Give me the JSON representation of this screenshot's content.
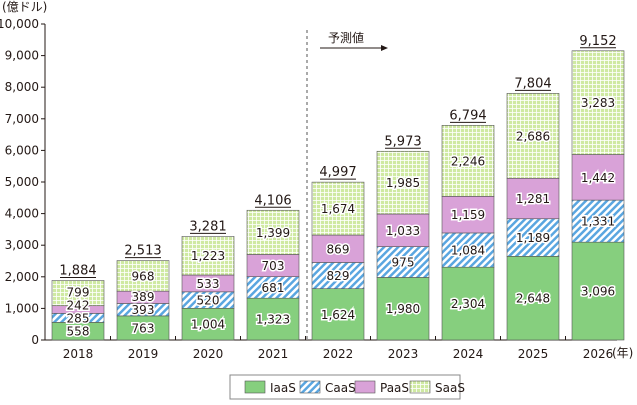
{
  "chart_data": {
    "type": "bar",
    "stacked": true,
    "ylabel": "(億ドル)",
    "xlabel": "(年)",
    "ylim": [
      0,
      10000
    ],
    "yticks": [
      "0",
      "1,000",
      "2,000",
      "3,000",
      "4,000",
      "5,000",
      "6,000",
      "7,000",
      "8,000",
      "9,000",
      "10,000"
    ],
    "categories": [
      "2018",
      "2019",
      "2020",
      "2021",
      "2022",
      "2023",
      "2024",
      "2025",
      "2026"
    ],
    "series": [
      {
        "name": "IaaS",
        "color": "#86cf7e",
        "values": [
          558,
          763,
          1004,
          1323,
          1624,
          1980,
          2304,
          2648,
          3096
        ],
        "labels": [
          "558",
          "763",
          "1,004",
          "1,323",
          "1,624",
          "1,980",
          "2,304",
          "2,648",
          "3,096"
        ]
      },
      {
        "name": "CaaS",
        "color": "#5aa6e0",
        "values": [
          285,
          393,
          520,
          681,
          829,
          975,
          1084,
          1189,
          1331
        ],
        "labels": [
          "285",
          "393",
          "520",
          "681",
          "829",
          "975",
          "1,084",
          "1,189",
          "1,331"
        ]
      },
      {
        "name": "PaaS",
        "color": "#d9a2d8",
        "values": [
          242,
          389,
          533,
          703,
          869,
          1033,
          1159,
          1281,
          1442
        ],
        "labels": [
          "242",
          "389",
          "533",
          "703",
          "869",
          "1,033",
          "1,159",
          "1,281",
          "1,442"
        ]
      },
      {
        "name": "SaaS",
        "color": "#cfe9a2",
        "values": [
          799,
          968,
          1223,
          1399,
          1674,
          1985,
          2246,
          2686,
          3283
        ],
        "labels": [
          "799",
          "968",
          "1,223",
          "1,399",
          "1,674",
          "1,985",
          "2,246",
          "2,686",
          "3,283"
        ]
      }
    ],
    "totals": [
      "1,884",
      "2,513",
      "3,281",
      "4,106",
      "4,997",
      "5,973",
      "6,794",
      "7,804",
      "9,152"
    ],
    "annotation": "予測値",
    "grid": false,
    "legend": "bottom"
  }
}
